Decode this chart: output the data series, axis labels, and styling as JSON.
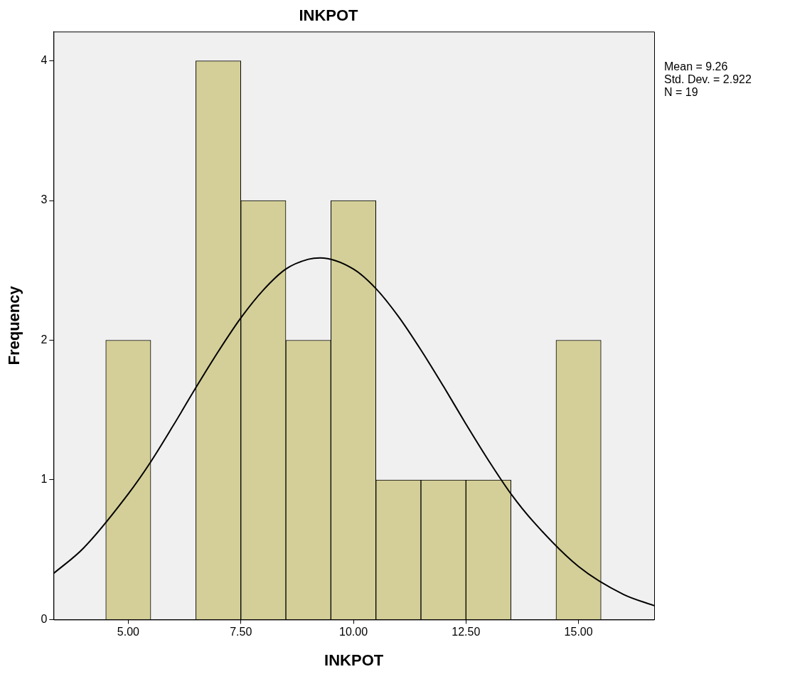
{
  "chart_data": {
    "type": "histogram",
    "title": "INKPOT",
    "xlabel": "INKPOT",
    "ylabel": "Frequency",
    "xlim": [
      3.34,
      16.68
    ],
    "xticks": [
      {
        "value": 5,
        "label": "5.00"
      },
      {
        "value": 7.5,
        "label": "7.50"
      },
      {
        "value": 10,
        "label": "10.00"
      },
      {
        "value": 12.5,
        "label": "12.50"
      },
      {
        "value": 15,
        "label": "15.00"
      }
    ],
    "ylim": [
      0,
      4.21
    ],
    "yticks": [
      0,
      1,
      2,
      3,
      4
    ],
    "grid": false,
    "legend": false,
    "marker": "none",
    "series": [
      {
        "type": "histogram",
        "color": "#d4cf98",
        "bins": [
          4.5,
          5.5,
          6.5,
          7.5,
          8.5,
          9.5,
          10.5,
          11.5,
          12.5,
          13.5,
          14.5,
          15.5
        ],
        "values": [
          2,
          0,
          4,
          3,
          2,
          3,
          1,
          1,
          1,
          0,
          2
        ]
      },
      {
        "type": "line",
        "color": "#000000",
        "x": [
          3.34,
          4,
          5,
          5.5,
          6,
          6.5,
          7,
          7.5,
          8,
          8.5,
          9,
          9.26,
          10,
          10.5,
          11,
          11.5,
          12,
          12.5,
          13,
          13.5,
          14,
          15,
          16,
          16.68
        ],
        "values": [
          0.33,
          0.51,
          0.9,
          1.13,
          1.39,
          1.66,
          1.92,
          2.16,
          2.36,
          2.51,
          2.58,
          2.59,
          2.51,
          2.37,
          2.17,
          1.93,
          1.67,
          1.4,
          1.14,
          0.9,
          0.7,
          0.38,
          0.18,
          0.1
        ]
      }
    ],
    "annotations": [
      "Mean = 9.26",
      "Std. Dev. = 2.922",
      "N = 19"
    ]
  }
}
